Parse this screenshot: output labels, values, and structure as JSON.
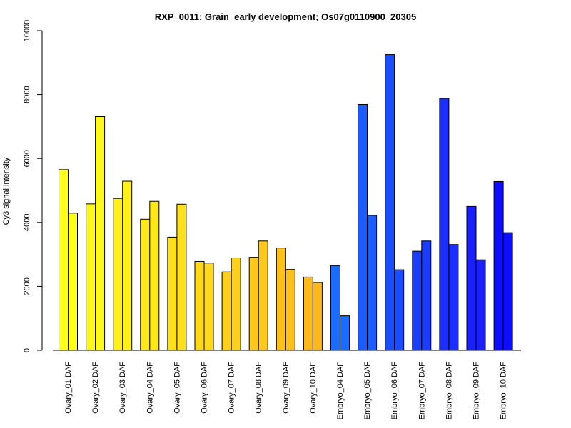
{
  "chart_data": {
    "type": "bar",
    "title": "RXP_0011: Grain_early development; Os07g0110900_20305",
    "xlabel": "",
    "ylabel": "Cy3 signal intensity",
    "ylim": [
      0,
      10000
    ],
    "yticks": [
      0,
      2000,
      4000,
      6000,
      8000,
      10000
    ],
    "grid": false,
    "categories": [
      "Ovary_01 DAF",
      "Ovary_02 DAF",
      "Ovary_03 DAF",
      "Ovary_04 DAF",
      "Ovary_05 DAF",
      "Ovary_06 DAF",
      "Ovary_07 DAF",
      "Ovary_08 DAF",
      "Ovary_09 DAF",
      "Ovary_10 DAF",
      "Embryo_04 DAF",
      "Embryo_05 DAF",
      "Embryo_06 DAF",
      "Embryo_07 DAF",
      "Embryo_08 DAF",
      "Embryo_09 DAF",
      "Embryo_10 DAF"
    ],
    "series": [
      {
        "values": [
          5650,
          4580,
          4750,
          4100,
          3540,
          2780,
          2450,
          2910,
          3200,
          2290,
          2650,
          7690,
          9250,
          3100,
          7880,
          4500,
          5280
        ]
      },
      {
        "values": [
          4290,
          7310,
          5290,
          4660,
          4570,
          2730,
          2890,
          3420,
          2530,
          2120,
          1080,
          4220,
          2520,
          3420,
          3310,
          2830,
          3680
        ]
      }
    ],
    "colors": [
      "#FFFF1A",
      "#FFF81A",
      "#FFF01A",
      "#FFE81A",
      "#FFE01A",
      "#FFD81A",
      "#FFD01A",
      "#FFC81A",
      "#FFC01A",
      "#FFB81A",
      "#1A6BFF",
      "#1A5CFF",
      "#1A4DFF",
      "#1A3DFF",
      "#1A2EFF",
      "#1A1FFF",
      "#0D0DFF"
    ]
  }
}
